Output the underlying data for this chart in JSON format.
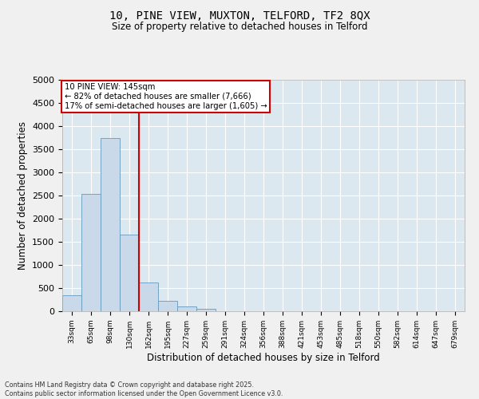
{
  "title_line1": "10, PINE VIEW, MUXTON, TELFORD, TF2 8QX",
  "title_line2": "Size of property relative to detached houses in Telford",
  "xlabel": "Distribution of detached houses by size in Telford",
  "ylabel": "Number of detached properties",
  "categories": [
    "33sqm",
    "65sqm",
    "98sqm",
    "130sqm",
    "162sqm",
    "195sqm",
    "227sqm",
    "259sqm",
    "291sqm",
    "324sqm",
    "356sqm",
    "388sqm",
    "421sqm",
    "453sqm",
    "485sqm",
    "518sqm",
    "550sqm",
    "582sqm",
    "614sqm",
    "647sqm",
    "679sqm"
  ],
  "values": [
    350,
    2530,
    3750,
    1650,
    620,
    230,
    100,
    60,
    0,
    0,
    0,
    0,
    0,
    0,
    0,
    0,
    0,
    0,
    0,
    0,
    0
  ],
  "bar_color": "#c9d9e9",
  "bar_edge_color": "#6699bb",
  "vline_color": "#cc0000",
  "annotation_text": "10 PINE VIEW: 145sqm\n← 82% of detached houses are smaller (7,666)\n17% of semi-detached houses are larger (1,605) →",
  "annotation_box_facecolor": "#ffffff",
  "annotation_box_edgecolor": "#cc0000",
  "ylim": [
    0,
    5000
  ],
  "yticks": [
    0,
    500,
    1000,
    1500,
    2000,
    2500,
    3000,
    3500,
    4000,
    4500,
    5000
  ],
  "plot_bg_color": "#dce8f0",
  "fig_bg_color": "#f0f0f0",
  "grid_color": "#ffffff",
  "footer_line1": "Contains HM Land Registry data © Crown copyright and database right 2025.",
  "footer_line2": "Contains public sector information licensed under the Open Government Licence v3.0."
}
